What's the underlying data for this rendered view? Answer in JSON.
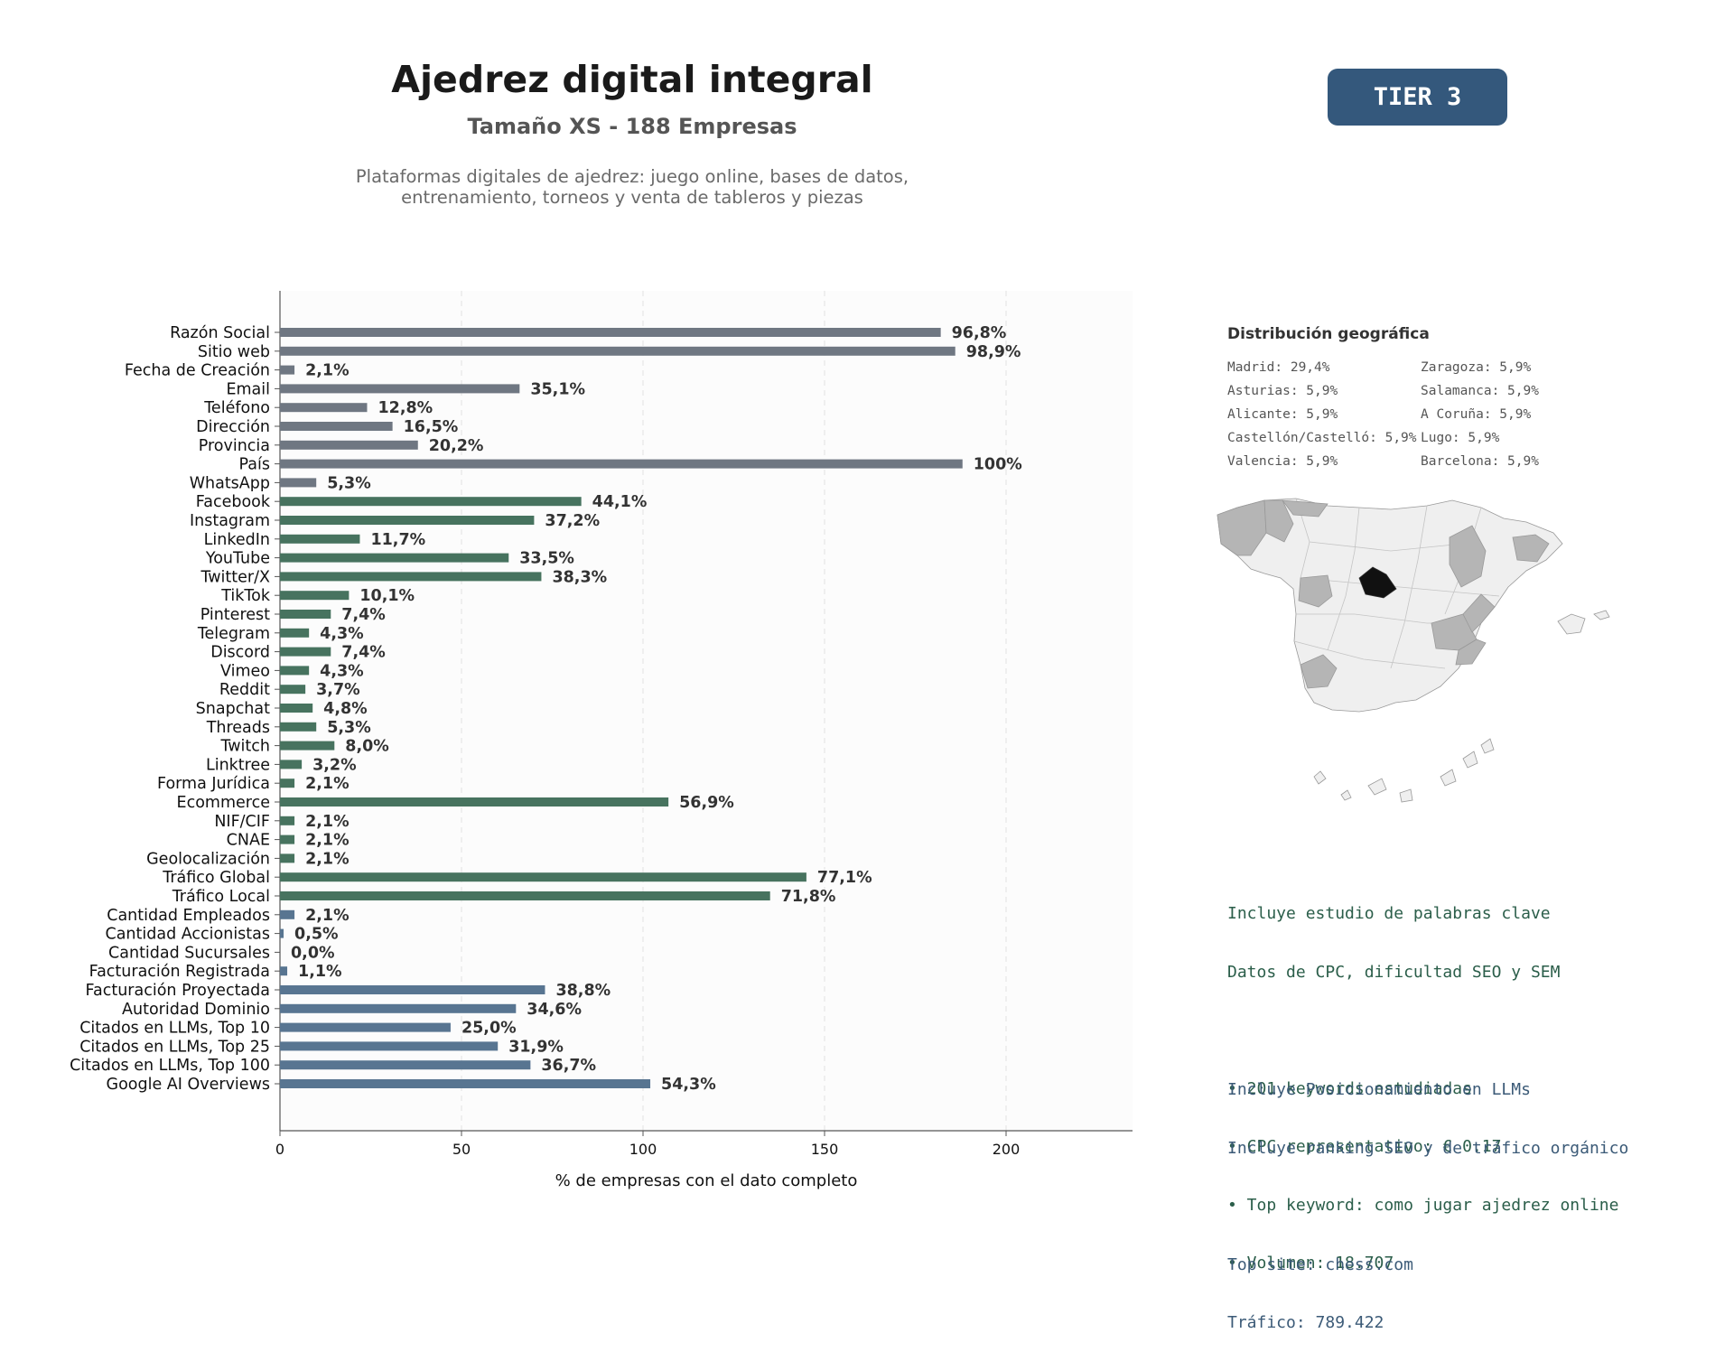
{
  "header": {
    "title": "Ajedrez digital integral",
    "subtitle": "Tamaño XS - 188 Empresas",
    "description_lines": [
      "Plataformas digitales de ajedrez: juego online, bases de datos,",
      "entrenamiento, torneos y venta de tableros y piezas"
    ],
    "tier_badge": "TIER 3"
  },
  "chart_data": {
    "type": "bar",
    "orientation": "horizontal",
    "xlabel": "% de empresas con el dato completo",
    "ylabel": "",
    "xlim": [
      0,
      235
    ],
    "xticks": [
      0,
      50,
      100,
      150,
      200
    ],
    "grid": "vertical dashed",
    "colors": {
      "basic": "#6f7782",
      "digital": "#47735f",
      "business": "#587591"
    },
    "categories": [
      "Razón Social",
      "Sitio web",
      "Fecha de Creación",
      "Email",
      "Teléfono",
      "Dirección",
      "Provincia",
      "País",
      "WhatsApp",
      "Facebook",
      "Instagram",
      "LinkedIn",
      "YouTube",
      "Twitter/X",
      "TikTok",
      "Pinterest",
      "Telegram",
      "Discord",
      "Vimeo",
      "Reddit",
      "Snapchat",
      "Threads",
      "Twitch",
      "Linktree",
      "Forma Jurídica",
      "Ecommerce",
      "NIF/CIF",
      "CNAE",
      "Geolocalización",
      "Tráfico Global",
      "Tráfico Local",
      "Cantidad Empleados",
      "Cantidad Accionistas",
      "Cantidad Sucursales",
      "Facturación Registrada",
      "Facturación Proyectada",
      "Autoridad Dominio",
      "Citados en LLMs, Top 10",
      "Citados en LLMs, Top 25",
      "Citados en LLMs, Top 100",
      "Google AI Overviews"
    ],
    "values": [
      182,
      186,
      4,
      66,
      24,
      31,
      38,
      188,
      10,
      83,
      70,
      22,
      63,
      72,
      19,
      14,
      8,
      14,
      8,
      7,
      9,
      10,
      15,
      6,
      4,
      107,
      4,
      4,
      4,
      145,
      135,
      4,
      1,
      0,
      2,
      73,
      65,
      47,
      60,
      69,
      102
    ],
    "value_labels": [
      "96,8%",
      "98,9%",
      "2,1%",
      "35,1%",
      "12,8%",
      "16,5%",
      "20,2%",
      "100%",
      "5,3%",
      "44,1%",
      "37,2%",
      "11,7%",
      "33,5%",
      "38,3%",
      "10,1%",
      "7,4%",
      "4,3%",
      "7,4%",
      "4,3%",
      "3,7%",
      "4,8%",
      "5,3%",
      "8,0%",
      "3,2%",
      "2,1%",
      "56,9%",
      "2,1%",
      "2,1%",
      "2,1%",
      "77,1%",
      "71,8%",
      "2,1%",
      "0,5%",
      "0,0%",
      "1,1%",
      "38,8%",
      "34,6%",
      "25,0%",
      "31,9%",
      "36,7%",
      "54,3%"
    ],
    "groups": [
      "basic",
      "basic",
      "basic",
      "basic",
      "basic",
      "basic",
      "basic",
      "basic",
      "basic",
      "digital",
      "digital",
      "digital",
      "digital",
      "digital",
      "digital",
      "digital",
      "digital",
      "digital",
      "digital",
      "digital",
      "digital",
      "digital",
      "digital",
      "digital",
      "digital",
      "digital",
      "digital",
      "digital",
      "digital",
      "digital",
      "digital",
      "business",
      "business",
      "business",
      "business",
      "business",
      "business",
      "business",
      "business",
      "business",
      "business"
    ]
  },
  "geo": {
    "title": "Distribución geográfica",
    "items": [
      "Madrid: 29,4%",
      "Zaragoza: 5,9%",
      "Asturias: 5,9%",
      "Salamanca: 5,9%",
      "Alicante: 5,9%",
      "A Coruña: 5,9%",
      "Castellón/Castelló: 5,9%",
      "Lugo: 5,9%",
      "Valencia: 5,9%",
      "Barcelona: 5,9%"
    ],
    "colors": {
      "top_region": "#111111",
      "highlight": "#b5b5b5",
      "other": "#efefef",
      "border": "#999999"
    }
  },
  "keywords_info": {
    "lines": [
      "Incluye estudio de palabras clave",
      "Datos de CPC, dificultad SEO y SEM",
      "",
      "• 201 keywords estudiadas",
      "• CPC representativo: € 0.17",
      "• Top keyword: como jugar ajedrez online",
      "• Volumen: 18.707"
    ],
    "color": "#2b5e4a"
  },
  "llm_info": {
    "lines": [
      "Incluye Posicionamiento en LLMs",
      "Incluye ranking SEO y de tráfico orgánico",
      "",
      "Top site: chess.com",
      "Tráfico: 789.422"
    ],
    "color": "#3b5a77"
  }
}
